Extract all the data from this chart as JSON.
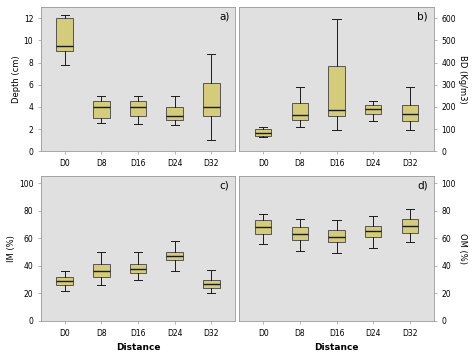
{
  "box_color": "#d4cc7a",
  "median_color": "#1a1a1a",
  "whisker_color": "#1a1a1a",
  "bg_color": "#e0e0e0",
  "categories": [
    "D0",
    "D8",
    "D16",
    "D24",
    "D32"
  ],
  "panel_a": {
    "label": "a)",
    "ylabel": "Depth (cm)",
    "ylabel_side": "left",
    "ylim": [
      0,
      13
    ],
    "yticks": [
      0,
      2,
      4,
      6,
      8,
      10,
      12
    ],
    "boxes": [
      {
        "q1": 9.0,
        "median": 9.5,
        "q3": 12.0,
        "whislo": 7.8,
        "whishi": 12.3,
        "fliers": []
      },
      {
        "q1": 3.0,
        "median": 4.0,
        "q3": 4.5,
        "whislo": 2.6,
        "whishi": 5.0,
        "fliers": []
      },
      {
        "q1": 3.2,
        "median": 4.0,
        "q3": 4.5,
        "whislo": 2.5,
        "whishi": 5.0,
        "fliers": []
      },
      {
        "q1": 2.8,
        "median": 3.2,
        "q3": 4.0,
        "whislo": 2.4,
        "whishi": 5.0,
        "fliers": []
      },
      {
        "q1": 3.2,
        "median": 4.0,
        "q3": 6.2,
        "whislo": 1.0,
        "whishi": 8.8,
        "fliers": []
      }
    ]
  },
  "panel_b": {
    "label": "b)",
    "ylabel": "BD (Kg/m3)",
    "ylabel_side": "right",
    "ylim": [
      0,
      650
    ],
    "yticks": [
      0,
      100,
      200,
      300,
      400,
      500,
      600
    ],
    "boxes": [
      {
        "q1": 70,
        "median": 85,
        "q3": 100,
        "whislo": 65,
        "whishi": 110,
        "fliers": []
      },
      {
        "q1": 140,
        "median": 165,
        "q3": 220,
        "whislo": 110,
        "whishi": 290,
        "fliers": []
      },
      {
        "q1": 160,
        "median": 185,
        "q3": 385,
        "whislo": 95,
        "whishi": 595,
        "fliers": []
      },
      {
        "q1": 170,
        "median": 190,
        "q3": 210,
        "whislo": 138,
        "whishi": 228,
        "fliers": []
      },
      {
        "q1": 135,
        "median": 168,
        "q3": 210,
        "whislo": 95,
        "whishi": 288,
        "fliers": []
      }
    ]
  },
  "panel_c": {
    "label": "c)",
    "ylabel": "IM (%)",
    "ylabel_side": "left",
    "ylim": [
      0,
      105
    ],
    "yticks": [
      0,
      20,
      40,
      60,
      80,
      100
    ],
    "xlabel": "Distance",
    "boxes": [
      {
        "q1": 26,
        "median": 29,
        "q3": 32,
        "whislo": 22,
        "whishi": 36,
        "fliers": []
      },
      {
        "q1": 32,
        "median": 36,
        "q3": 41,
        "whislo": 26,
        "whishi": 50,
        "fliers": []
      },
      {
        "q1": 35,
        "median": 38,
        "q3": 41,
        "whislo": 30,
        "whishi": 50,
        "fliers": []
      },
      {
        "q1": 44,
        "median": 47,
        "q3": 50,
        "whislo": 36,
        "whishi": 58,
        "fliers": []
      },
      {
        "q1": 24,
        "median": 27,
        "q3": 30,
        "whislo": 20,
        "whishi": 37,
        "fliers": []
      }
    ]
  },
  "panel_d": {
    "label": "d)",
    "ylabel": "OM (%)",
    "ylabel_side": "right",
    "ylim": [
      0,
      105
    ],
    "yticks": [
      0,
      20,
      40,
      60,
      80,
      100
    ],
    "xlabel": "Distance",
    "boxes": [
      {
        "q1": 63,
        "median": 68,
        "q3": 73,
        "whislo": 56,
        "whishi": 78,
        "fliers": []
      },
      {
        "q1": 59,
        "median": 63,
        "q3": 68,
        "whislo": 51,
        "whishi": 74,
        "fliers": []
      },
      {
        "q1": 57,
        "median": 61,
        "q3": 66,
        "whislo": 49,
        "whishi": 73,
        "fliers": []
      },
      {
        "q1": 61,
        "median": 65,
        "q3": 69,
        "whislo": 53,
        "whishi": 76,
        "fliers": []
      },
      {
        "q1": 64,
        "median": 69,
        "q3": 74,
        "whislo": 57,
        "whishi": 81,
        "fliers": []
      }
    ]
  }
}
